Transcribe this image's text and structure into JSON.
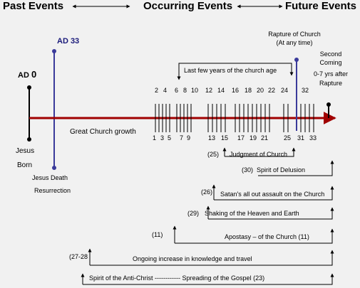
{
  "header": {
    "past": "Past Events",
    "occurring": "Occurring Events",
    "future": "Future Events"
  },
  "left": {
    "ad0_prefix": "AD",
    "ad0_num": "0",
    "ad33": "AD 33",
    "jesus": "Jesus",
    "born": "Born",
    "death": "Jesus Death",
    "resurrection": "Resurrection"
  },
  "future": {
    "rapture_line1": "Rapture of Church",
    "rapture_line2": "(At any time)",
    "second_line1": "Second",
    "second_line2": "Coming",
    "second_line3": "0-7 yrs after",
    "second_line4": "Rapture"
  },
  "timeline": {
    "growth": "Great Church growth",
    "last_years": "Last few years of the church age",
    "top_ticks": [
      "2",
      "4",
      "6",
      "8",
      "10",
      "12",
      "14",
      "16",
      "18",
      "20",
      "22",
      "24",
      "32"
    ],
    "bottom_ticks": [
      "1",
      "3",
      "5",
      "7",
      "9",
      "13",
      "15",
      "17",
      "19",
      "21",
      "25",
      "31",
      "33"
    ]
  },
  "events": [
    {
      "ref": "(25)",
      "label": "Judgment of Church"
    },
    {
      "ref": "(30)",
      "label": "Spirit of Delusion"
    },
    {
      "ref": "(26)",
      "label": "Satan's all out assault on the Church"
    },
    {
      "ref": "(29)",
      "label": "Shaking of the Heaven and Earth"
    },
    {
      "ref": "(11)",
      "label": "Apostasy – of the Church (11)"
    },
    {
      "ref": "(27-28",
      "label": "Ongoing increase in knowledge and travel"
    },
    {
      "ref": "",
      "label": "Spirit of the Anti-Christ  ------------  Spreading of the Gospel  (23)"
    }
  ],
  "colors": {
    "timeline": "#a00000",
    "ad33_line": "#3a3a9a",
    "background": "#f1f1f1"
  }
}
